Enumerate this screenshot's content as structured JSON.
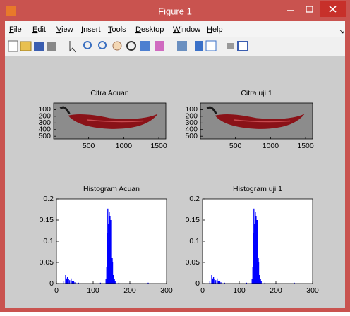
{
  "window": {
    "title": "Figure 1",
    "menu": [
      "File",
      "Edit",
      "View",
      "Insert",
      "Tools",
      "Desktop",
      "Window",
      "Help"
    ]
  },
  "chart_data": [
    {
      "type": "image",
      "title": "Citra Acuan",
      "xlim": [
        0.5,
        1600
      ],
      "ylim": [
        0.5,
        540
      ],
      "xticks": [
        500,
        1000,
        1500
      ],
      "yticks": [
        100,
        200,
        300,
        400,
        500
      ]
    },
    {
      "type": "image",
      "title": "Citra uji 1",
      "xlim": [
        0.5,
        1600
      ],
      "ylim": [
        0.5,
        540
      ],
      "xticks": [
        500,
        1000,
        1500
      ],
      "yticks": [
        100,
        200,
        300,
        400,
        500
      ]
    },
    {
      "type": "bar",
      "title": "Histogram Acuan",
      "color": "#0000ff",
      "xlim": [
        0,
        300
      ],
      "ylim": [
        0,
        0.2
      ],
      "xticks": [
        0,
        100,
        200,
        300
      ],
      "yticks": [
        0,
        0.05,
        0.1,
        0.15,
        0.2
      ],
      "x": [
        20,
        25,
        28,
        30,
        33,
        36,
        40,
        43,
        47,
        50,
        60,
        120,
        135,
        137,
        138,
        139,
        140,
        141,
        142,
        143,
        144,
        145,
        146,
        147,
        148,
        149,
        150,
        151,
        152,
        153,
        155,
        158,
        160,
        170,
        200,
        250
      ],
      "values": [
        0.005,
        0.02,
        0.012,
        0.015,
        0.01,
        0.008,
        0.012,
        0.006,
        0.005,
        0.003,
        0.002,
        0.002,
        0.01,
        0.04,
        0.06,
        0.12,
        0.177,
        0.09,
        0.14,
        0.05,
        0.17,
        0.08,
        0.16,
        0.06,
        0.15,
        0.05,
        0.15,
        0.03,
        0.06,
        0.05,
        0.02,
        0.01,
        0.005,
        0.002,
        0.001,
        0.002
      ]
    },
    {
      "type": "bar",
      "title": "Histogram uji 1",
      "color": "#0000ff",
      "xlim": [
        0,
        300
      ],
      "ylim": [
        0,
        0.2
      ],
      "xticks": [
        0,
        100,
        200,
        300
      ],
      "yticks": [
        0,
        0.05,
        0.1,
        0.15,
        0.2
      ],
      "x": [
        20,
        25,
        28,
        30,
        33,
        36,
        40,
        43,
        47,
        50,
        60,
        120,
        135,
        137,
        138,
        139,
        140,
        141,
        142,
        143,
        144,
        145,
        146,
        147,
        148,
        149,
        150,
        151,
        152,
        153,
        155,
        158,
        160,
        170,
        200,
        250
      ],
      "values": [
        0.005,
        0.02,
        0.012,
        0.015,
        0.01,
        0.008,
        0.012,
        0.006,
        0.005,
        0.003,
        0.002,
        0.002,
        0.01,
        0.04,
        0.06,
        0.12,
        0.177,
        0.09,
        0.14,
        0.05,
        0.17,
        0.08,
        0.16,
        0.06,
        0.15,
        0.05,
        0.15,
        0.03,
        0.06,
        0.05,
        0.02,
        0.01,
        0.005,
        0.002,
        0.001,
        0.002
      ]
    }
  ]
}
